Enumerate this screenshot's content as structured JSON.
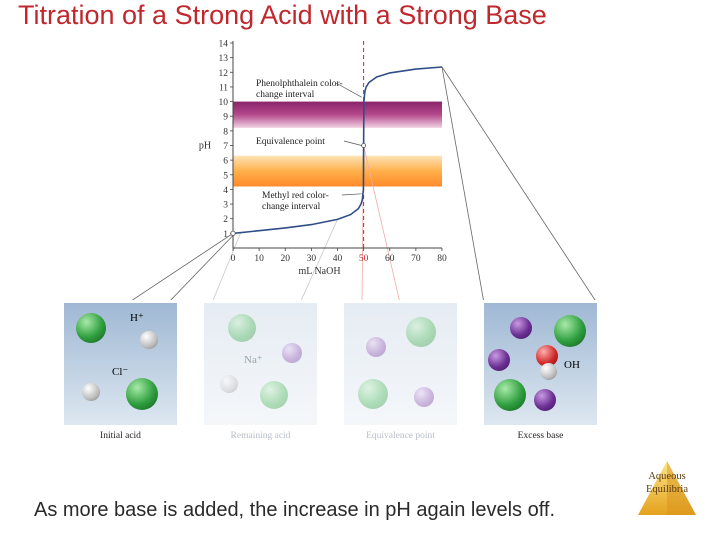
{
  "slide": {
    "title": "Titration of a Strong Acid with a Strong Base",
    "caption": "As more base is added, the increase in pH again levels off."
  },
  "badge": {
    "line1": "Aqueous",
    "line2": "Equilibria"
  },
  "chart_data": {
    "type": "line",
    "xlabel": "mL NaOH",
    "ylabel": "pH",
    "xlim": [
      0,
      80
    ],
    "ylim": [
      0,
      14
    ],
    "xticks": [
      0,
      10,
      20,
      30,
      40,
      50,
      60,
      70,
      80
    ],
    "yticks": [
      1,
      2,
      3,
      4,
      5,
      6,
      7,
      8,
      9,
      10,
      11,
      12,
      13,
      14
    ],
    "highlight_xtick": 50,
    "equivalence_volume": 50,
    "series": [
      {
        "x": [
          0,
          10,
          20,
          30,
          40,
          45,
          48,
          49,
          49.5,
          49.9,
          50,
          50.1,
          50.5,
          51,
          52,
          55,
          60,
          70,
          80
        ],
        "y": [
          1.0,
          1.18,
          1.37,
          1.6,
          1.95,
          2.28,
          2.69,
          3.0,
          3.3,
          4.0,
          7.0,
          10.0,
          10.7,
          11.0,
          11.3,
          11.68,
          11.96,
          12.22,
          12.36
        ]
      }
    ],
    "bands": [
      {
        "label": "Phenolphthalein color-change interval",
        "from": 8.2,
        "to": 10.0,
        "color_low": "#f0c8dd",
        "color_high": "#9c2f74"
      },
      {
        "label": "Methyl red color-change interval",
        "from": 4.2,
        "to": 6.3,
        "color_low": "#f3a640",
        "color_high": "#f07a2d"
      }
    ],
    "annotations": [
      {
        "text_line1": "Phenolphthalein color-",
        "text_line2": "change interval",
        "target_x": 50,
        "target_y": 10.3
      },
      {
        "text_line1": "Equivalence point",
        "text_line2": "",
        "target_x": 50,
        "target_y": 7
      },
      {
        "text_line1": "Methyl red color-",
        "text_line2": "change interval",
        "target_x": 50,
        "target_y": 3.7
      }
    ]
  },
  "panels": [
    {
      "caption": "Initial acid",
      "faded": false,
      "labels": [
        "H⁺",
        "Cl⁻"
      ]
    },
    {
      "caption": "Remaining acid",
      "faded": true,
      "labels": [
        "Na⁺"
      ]
    },
    {
      "caption": "Equivalence point",
      "faded": true,
      "labels": []
    },
    {
      "caption": "Excess base",
      "faded": false,
      "labels": [
        "OH"
      ]
    }
  ],
  "colors": {
    "title": "#c0282d",
    "curve": "#2f4d86",
    "dashed": "#c0282d",
    "chlorine": "#2e9e3e",
    "sodium": "#6b2f93",
    "hydrogen": "#c8c8c8",
    "oxygen": "#d12a2a"
  }
}
